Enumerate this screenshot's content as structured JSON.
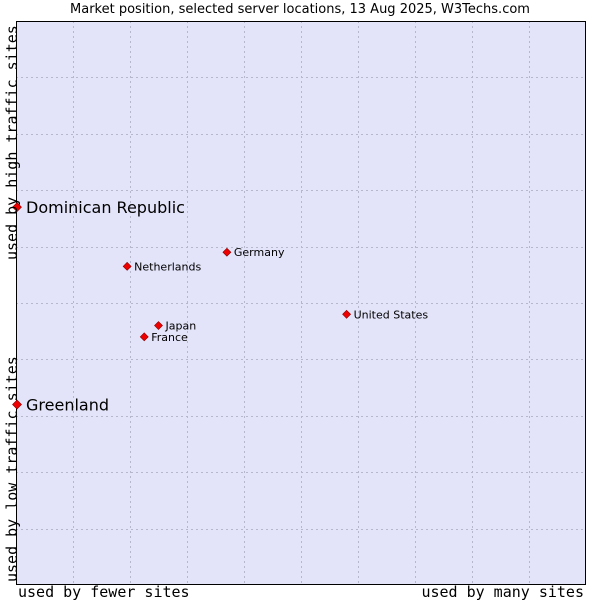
{
  "chart_data": {
    "type": "scatter",
    "title": "Market position, selected server locations, 13 Aug 2025, W3Techs.com",
    "xlabel_left": "used by fewer sites",
    "xlabel_right": "used by many sites",
    "ylabel_bottom": "used by low traffic sites",
    "ylabel_top": "used by high traffic sites",
    "xlim": [
      0,
      10
    ],
    "ylim": [
      0,
      10
    ],
    "grid": true,
    "points": [
      {
        "label": "Dominican Republic",
        "x": 0.0,
        "y": 6.7,
        "highlight": true
      },
      {
        "label": "Greenland",
        "x": 0.0,
        "y": 3.2,
        "highlight": true
      },
      {
        "label": "Germany",
        "x": 3.7,
        "y": 5.9,
        "highlight": false
      },
      {
        "label": "Netherlands",
        "x": 1.95,
        "y": 5.65,
        "highlight": false
      },
      {
        "label": "United States",
        "x": 5.8,
        "y": 4.8,
        "highlight": false
      },
      {
        "label": "Japan",
        "x": 2.5,
        "y": 4.6,
        "highlight": false
      },
      {
        "label": "France",
        "x": 2.25,
        "y": 4.4,
        "highlight": false
      }
    ]
  },
  "colors": {
    "plot_background": "#e3e4f9",
    "grid": "#b6b6cc",
    "point": "#ee0000",
    "point_outline": "#880000"
  }
}
